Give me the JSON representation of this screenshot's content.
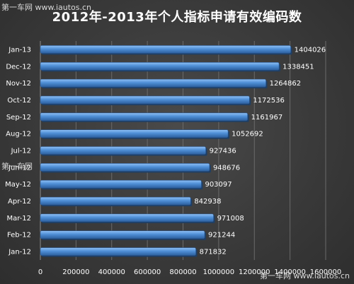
{
  "watermarks": {
    "top": "第一车网  www.iautos.cn",
    "mid": "第一车网",
    "bottom": "第一车网 www.iautos.cn"
  },
  "chart_data": {
    "type": "bar",
    "orientation": "horizontal",
    "title": "2012年-2013年个人指标申请有效编码数",
    "categories": [
      "Jan-13",
      "Dec-12",
      "Nov-12",
      "Oct-12",
      "Sep-12",
      "Aug-12",
      "Jul-12",
      "Jun-12",
      "May-12",
      "Apr-12",
      "Mar-12",
      "Feb-12",
      "Jan-12"
    ],
    "values": [
      1404026,
      1338451,
      1264862,
      1172536,
      1161967,
      1052692,
      927436,
      948676,
      903097,
      842938,
      971008,
      921244,
      871832
    ],
    "xlim": [
      0,
      1600000
    ],
    "xticks": [
      0,
      200000,
      400000,
      600000,
      800000,
      1000000,
      1200000,
      1400000,
      1600000
    ],
    "xtick_labels": [
      "0",
      "200000",
      "400000",
      "600000",
      "800000",
      "1000000",
      "1200000",
      "1400000",
      "1600000"
    ],
    "bar_color": "#4f8fd6",
    "background_color": "#3a3a3a",
    "grid": true,
    "data_labels": true
  }
}
